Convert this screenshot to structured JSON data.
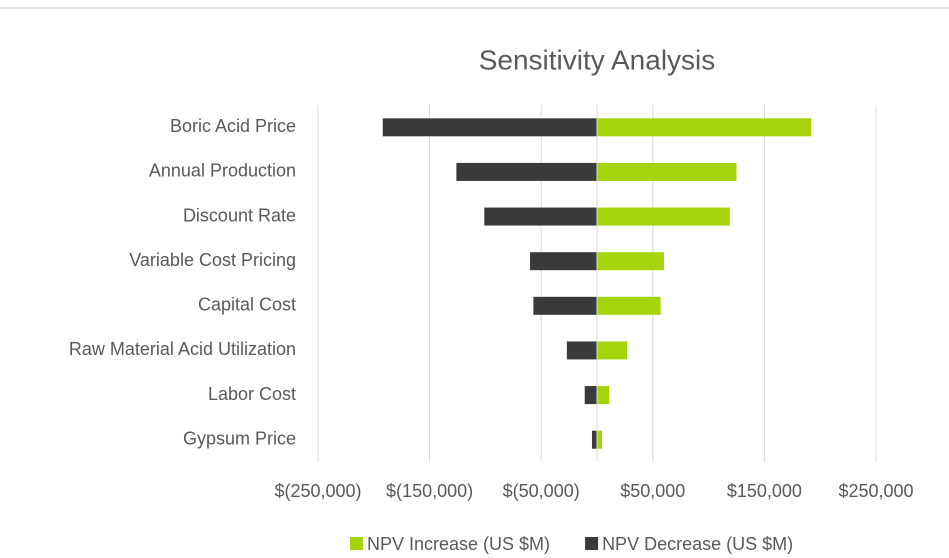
{
  "chart_data": {
    "type": "tornado",
    "title": "Sensitivity Analysis",
    "categories": [
      "Boric Acid Price",
      "Annual Production",
      "Discount Rate",
      "Variable Cost Pricing",
      "Capital Cost",
      "Raw Material Acid Utilization",
      "Labor Cost ",
      "Gypsum Price"
    ],
    "series": [
      {
        "name": "NPV Increase (US $M)",
        "color": "#a5d40a",
        "values": [
          192000,
          125000,
          119000,
          60000,
          57000,
          27000,
          11000,
          4500
        ]
      },
      {
        "name": "NPV Decrease (US $M)",
        "color": "#3a3a3a",
        "values": [
          -192000,
          -126000,
          -101000,
          -60000,
          -57000,
          -27000,
          -11000,
          -4500
        ]
      }
    ],
    "xlim": [
      -250000,
      250000
    ],
    "xticks": [
      {
        "value": -250000,
        "label": "$(250,000)"
      },
      {
        "value": -150000,
        "label": "$(150,000)"
      },
      {
        "value": -50000,
        "label": "$(50,000)"
      },
      {
        "value": 50000,
        "label": "$50,000"
      },
      {
        "value": 150000,
        "label": "$150,000"
      },
      {
        "value": 250000,
        "label": "$250,000"
      }
    ],
    "grid": true,
    "legend": "bottom"
  }
}
